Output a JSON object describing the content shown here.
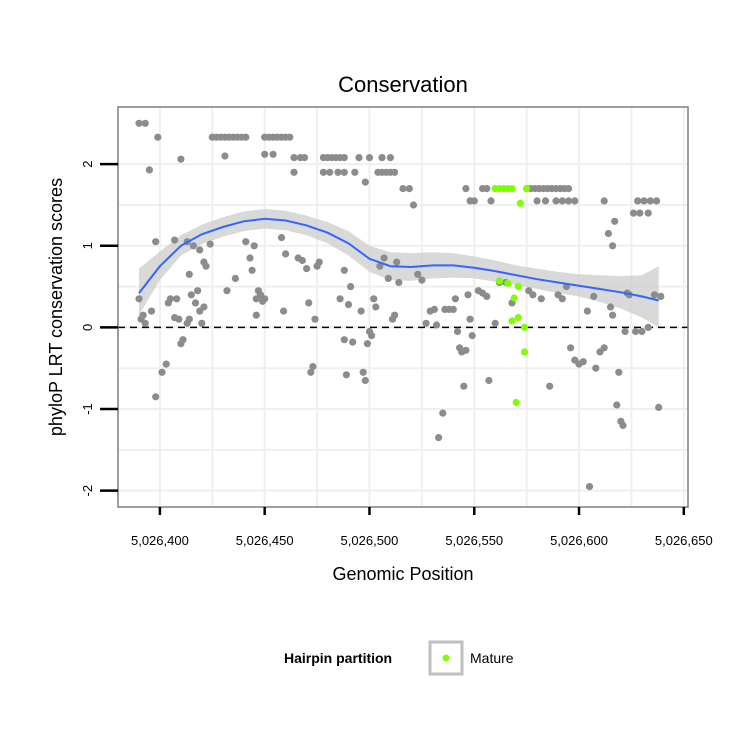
{
  "chart_data": {
    "type": "scatter",
    "title": "Conservation",
    "xlabel": "Genomic Position",
    "ylabel": "phyloP LRT conservation scores",
    "xlim": [
      5026380,
      5026652
    ],
    "ylim": [
      -2.2,
      2.7
    ],
    "x_ticks": [
      5026400,
      5026450,
      5026500,
      5026550,
      5026600,
      5026650
    ],
    "x_tick_labels": [
      "5,026,400",
      "5,026,450",
      "5,026,500",
      "5,026,550",
      "5,026,600",
      "5,026,650"
    ],
    "y_ticks": [
      -2,
      -1,
      0,
      1,
      2
    ],
    "y_tick_labels": [
      "-2",
      "-1",
      "0",
      "1",
      "2"
    ],
    "reference_line": {
      "y": 0,
      "style": "dashed"
    },
    "grid": true,
    "legend": {
      "title": "Hairpin partition",
      "position": "bottom",
      "entries": [
        "Mature"
      ]
    },
    "colors": {
      "other": "#8c8c8c",
      "mature": "#7fff00",
      "smooth_line": "#3366ff",
      "ribbon": "#cccccc"
    },
    "series": [
      {
        "points": [
          [
            5026390,
            2.5
          ],
          [
            5026393,
            2.5
          ],
          [
            5026395,
            1.93
          ],
          [
            5026399,
            2.33
          ],
          [
            5026398,
            1.05
          ],
          [
            5026407,
            1.07
          ],
          [
            5026410,
            2.06
          ],
          [
            5026413,
            1.05
          ],
          [
            5026416,
            1.0
          ],
          [
            5026419,
            0.95
          ],
          [
            5026421,
            0.8
          ],
          [
            5026422,
            0.75
          ],
          [
            5026424,
            1.02
          ],
          [
            5026390,
            0.35
          ],
          [
            5026391,
            0.1
          ],
          [
            5026392,
            0.15
          ],
          [
            5026393,
            0.05
          ],
          [
            5026396,
            0.2
          ],
          [
            5026398,
            -0.85
          ],
          [
            5026401,
            -0.55
          ],
          [
            5026403,
            -0.45
          ],
          [
            5026404,
            0.3
          ],
          [
            5026405,
            0.35
          ],
          [
            5026407,
            0.12
          ],
          [
            5026408,
            0.35
          ],
          [
            5026409,
            0.1
          ],
          [
            5026410,
            -0.2
          ],
          [
            5026411,
            -0.15
          ],
          [
            5026413,
            0.05
          ],
          [
            5026414,
            0.1
          ],
          [
            5026414,
            0.65
          ],
          [
            5026415,
            0.4
          ],
          [
            5026417,
            0.3
          ],
          [
            5026418,
            0.45
          ],
          [
            5026419,
            0.2
          ],
          [
            5026420,
            0.05
          ],
          [
            5026421,
            0.25
          ],
          [
            5026425,
            2.33
          ],
          [
            5026427,
            2.33
          ],
          [
            5026429,
            2.33
          ],
          [
            5026431,
            2.33
          ],
          [
            5026433,
            2.33
          ],
          [
            5026435,
            2.33
          ],
          [
            5026437,
            2.33
          ],
          [
            5026439,
            2.33
          ],
          [
            5026441,
            2.33
          ],
          [
            5026431,
            2.1
          ],
          [
            5026436,
            0.6
          ],
          [
            5026432,
            0.45
          ],
          [
            5026441,
            1.05
          ],
          [
            5026445,
            1.0
          ],
          [
            5026443,
            0.85
          ],
          [
            5026444,
            0.7
          ],
          [
            5026446,
            0.35
          ],
          [
            5026447,
            0.45
          ],
          [
            5026448,
            0.4
          ],
          [
            5026449,
            0.32
          ],
          [
            5026450,
            0.35
          ],
          [
            5026446,
            0.15
          ],
          [
            5026450,
            2.33
          ],
          [
            5026452,
            2.33
          ],
          [
            5026454,
            2.33
          ],
          [
            5026456,
            2.33
          ],
          [
            5026458,
            2.33
          ],
          [
            5026460,
            2.33
          ],
          [
            5026462,
            2.33
          ],
          [
            5026450,
            2.12
          ],
          [
            5026454,
            2.12
          ],
          [
            5026458,
            1.1
          ],
          [
            5026460,
            0.9
          ],
          [
            5026459,
            0.2
          ],
          [
            5026464,
            2.08
          ],
          [
            5026467,
            2.08
          ],
          [
            5026469,
            2.08
          ],
          [
            5026464,
            1.9
          ],
          [
            5026466,
            0.85
          ],
          [
            5026468,
            0.82
          ],
          [
            5026470,
            0.72
          ],
          [
            5026471,
            0.3
          ],
          [
            5026472,
            -0.55
          ],
          [
            5026473,
            -0.48
          ],
          [
            5026474,
            0.1
          ],
          [
            5026475,
            0.75
          ],
          [
            5026476,
            0.8
          ],
          [
            5026478,
            2.08
          ],
          [
            5026480,
            2.08
          ],
          [
            5026482,
            2.08
          ],
          [
            5026484,
            2.08
          ],
          [
            5026486,
            2.08
          ],
          [
            5026488,
            2.08
          ],
          [
            5026478,
            1.9
          ],
          [
            5026481,
            1.9
          ],
          [
            5026485,
            1.9
          ],
          [
            5026488,
            1.9
          ],
          [
            5026488,
            0.7
          ],
          [
            5026486,
            0.35
          ],
          [
            5026488,
            -0.15
          ],
          [
            5026489,
            -0.58
          ],
          [
            5026490,
            0.28
          ],
          [
            5026491,
            0.5
          ],
          [
            5026492,
            -0.18
          ],
          [
            5026495,
            2.08
          ],
          [
            5026500,
            2.08
          ],
          [
            5026493,
            1.9
          ],
          [
            5026498,
            1.78
          ],
          [
            5026496,
            0.2
          ],
          [
            5026497,
            -0.55
          ],
          [
            5026498,
            -0.65
          ],
          [
            5026499,
            -0.2
          ],
          [
            5026500,
            -0.05
          ],
          [
            5026501,
            -0.1
          ],
          [
            5026502,
            0.35
          ],
          [
            5026503,
            0.25
          ],
          [
            5026504,
            1.9
          ],
          [
            5026506,
            1.9
          ],
          [
            5026508,
            1.9
          ],
          [
            5026510,
            1.9
          ],
          [
            5026512,
            1.9
          ],
          [
            5026506,
            2.08
          ],
          [
            5026510,
            2.08
          ],
          [
            5026505,
            0.75
          ],
          [
            5026507,
            0.85
          ],
          [
            5026509,
            0.6
          ],
          [
            5026511,
            0.1
          ],
          [
            5026512,
            0.15
          ],
          [
            5026513,
            0.8
          ],
          [
            5026514,
            0.55
          ],
          [
            5026516,
            1.7
          ],
          [
            5026519,
            1.7
          ],
          [
            5026521,
            1.5
          ],
          [
            5026523,
            0.65
          ],
          [
            5026525,
            0.58
          ],
          [
            5026527,
            0.05
          ],
          [
            5026529,
            0.2
          ],
          [
            5026531,
            0.22
          ],
          [
            5026532,
            0.03
          ],
          [
            5026533,
            -1.35
          ],
          [
            5026535,
            -1.05
          ],
          [
            5026536,
            0.22
          ],
          [
            5026538,
            0.22
          ],
          [
            5026540,
            0.22
          ],
          [
            5026541,
            0.35
          ],
          [
            5026542,
            -0.05
          ],
          [
            5026543,
            -0.25
          ],
          [
            5026544,
            -0.3
          ],
          [
            5026545,
            -0.72
          ],
          [
            5026546,
            -0.28
          ],
          [
            5026547,
            0.4
          ],
          [
            5026548,
            0.1
          ],
          [
            5026549,
            -0.1
          ],
          [
            5026546,
            1.7
          ],
          [
            5026548,
            1.55
          ],
          [
            5026550,
            1.55
          ],
          [
            5026554,
            1.7
          ],
          [
            5026556,
            1.7
          ],
          [
            5026558,
            1.55
          ],
          [
            5026552,
            0.45
          ],
          [
            5026554,
            0.42
          ],
          [
            5026556,
            0.38
          ],
          [
            5026557,
            -0.65
          ],
          [
            5026560,
            0.05
          ],
          [
            5026562,
            0.55
          ],
          [
            5026565,
            0.55
          ],
          [
            5026568,
            0.3
          ],
          [
            5026575,
            1.7
          ],
          [
            5026577,
            1.7
          ],
          [
            5026579,
            1.7
          ],
          [
            5026581,
            1.7
          ],
          [
            5026583,
            1.7
          ],
          [
            5026585,
            1.7
          ],
          [
            5026587,
            1.7
          ],
          [
            5026589,
            1.7
          ],
          [
            5026591,
            1.7
          ],
          [
            5026593,
            1.7
          ],
          [
            5026595,
            1.7
          ],
          [
            5026580,
            1.55
          ],
          [
            5026584,
            1.55
          ],
          [
            5026589,
            1.55
          ],
          [
            5026592,
            1.55
          ],
          [
            5026595,
            1.55
          ],
          [
            5026598,
            1.55
          ],
          [
            5026576,
            0.45
          ],
          [
            5026578,
            0.4
          ],
          [
            5026582,
            0.35
          ],
          [
            5026586,
            -0.72
          ],
          [
            5026590,
            0.4
          ],
          [
            5026592,
            0.35
          ],
          [
            5026594,
            0.5
          ],
          [
            5026596,
            -0.25
          ],
          [
            5026598,
            -0.4
          ],
          [
            5026600,
            -0.45
          ],
          [
            5026602,
            -0.42
          ],
          [
            5026604,
            0.2
          ],
          [
            5026605,
            -1.95
          ],
          [
            5026607,
            0.38
          ],
          [
            5026608,
            -0.5
          ],
          [
            5026610,
            -0.3
          ],
          [
            5026612,
            -0.25
          ],
          [
            5026612,
            1.55
          ],
          [
            5026614,
            1.15
          ],
          [
            5026616,
            1.0
          ],
          [
            5026617,
            1.3
          ],
          [
            5026615,
            0.25
          ],
          [
            5026616,
            0.15
          ],
          [
            5026618,
            -0.95
          ],
          [
            5026619,
            -0.55
          ],
          [
            5026620,
            -1.15
          ],
          [
            5026621,
            -1.2
          ],
          [
            5026622,
            -0.05
          ],
          [
            5026623,
            0.42
          ],
          [
            5026624,
            0.4
          ],
          [
            5026626,
            1.4
          ],
          [
            5026629,
            1.4
          ],
          [
            5026633,
            1.4
          ],
          [
            5026628,
            1.55
          ],
          [
            5026631,
            1.55
          ],
          [
            5026634,
            1.55
          ],
          [
            5026637,
            1.55
          ],
          [
            5026627,
            -0.05
          ],
          [
            5026630,
            -0.05
          ],
          [
            5026633,
            0.0
          ],
          [
            5026636,
            0.4
          ],
          [
            5026638,
            -0.98
          ],
          [
            5026639,
            0.38
          ]
        ]
      },
      {
        "name": "Mature",
        "points": [
          [
            5026560,
            1.7
          ],
          [
            5026562,
            1.7
          ],
          [
            5026564,
            1.7
          ],
          [
            5026566,
            1.7
          ],
          [
            5026568,
            1.7
          ],
          [
            5026572,
            1.52
          ],
          [
            5026575,
            1.7
          ],
          [
            5026562,
            0.57
          ],
          [
            5026566,
            0.54
          ],
          [
            5026569,
            0.36
          ],
          [
            5026571,
            0.5
          ],
          [
            5026568,
            0.08
          ],
          [
            5026571,
            0.12
          ],
          [
            5026574,
            0.0
          ],
          [
            5026574,
            -0.3
          ],
          [
            5026570,
            -0.92
          ]
        ]
      }
    ],
    "smooth": {
      "x": [
        5026390,
        5026400,
        5026410,
        5026420,
        5026430,
        5026440,
        5026450,
        5026460,
        5026470,
        5026480,
        5026490,
        5026500,
        5026510,
        5026520,
        5026530,
        5026540,
        5026550,
        5026560,
        5026570,
        5026580,
        5026590,
        5026600,
        5026610,
        5026620,
        5026630,
        5026638
      ],
      "y": [
        0.42,
        0.75,
        1.0,
        1.14,
        1.23,
        1.3,
        1.33,
        1.31,
        1.25,
        1.16,
        1.03,
        0.84,
        0.75,
        0.74,
        0.76,
        0.76,
        0.73,
        0.69,
        0.64,
        0.59,
        0.55,
        0.51,
        0.47,
        0.43,
        0.38,
        0.33
      ],
      "lower": [
        0.15,
        0.58,
        0.88,
        1.02,
        1.11,
        1.18,
        1.21,
        1.19,
        1.13,
        1.03,
        0.88,
        0.68,
        0.58,
        0.57,
        0.6,
        0.61,
        0.6,
        0.56,
        0.52,
        0.47,
        0.42,
        0.38,
        0.31,
        0.23,
        0.12,
        0.0
      ],
      "upper": [
        0.72,
        0.93,
        1.13,
        1.26,
        1.35,
        1.42,
        1.45,
        1.43,
        1.37,
        1.29,
        1.18,
        1.0,
        0.92,
        0.91,
        0.92,
        0.91,
        0.87,
        0.82,
        0.76,
        0.72,
        0.68,
        0.65,
        0.64,
        0.63,
        0.64,
        0.75
      ]
    }
  }
}
